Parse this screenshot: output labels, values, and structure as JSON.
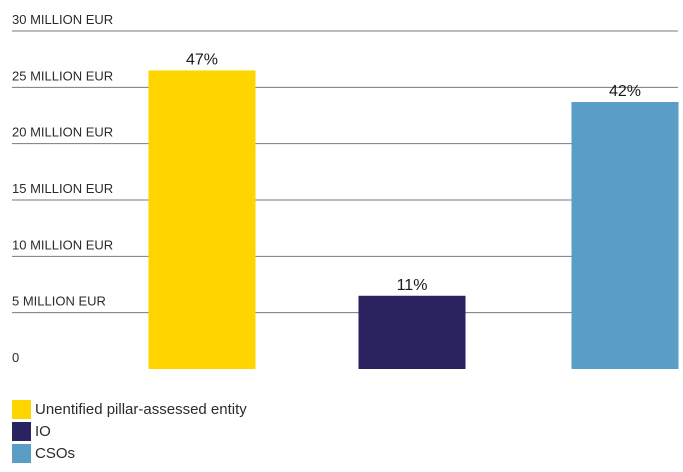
{
  "chart_data": {
    "type": "bar",
    "categories": [
      "Unentified pillar-assessed entity",
      "IO",
      "CSOs"
    ],
    "values": [
      26.5,
      6.5,
      23.7
    ],
    "data_labels": [
      "47%",
      "11%",
      "42%"
    ],
    "colors": [
      "#FFD500",
      "#2A2360",
      "#5A9EC8"
    ],
    "ylim": [
      0,
      30
    ],
    "y_ticks": [
      0,
      5,
      10,
      15,
      20,
      25,
      30
    ],
    "y_tick_labels": [
      "0",
      "5 MILLION EUR",
      "10 MILLION EUR",
      "15 MILLION EUR",
      "20 MILLION EUR",
      "25 MILLION EUR",
      "30 MILLION EUR"
    ],
    "grid": true,
    "legend_position": "bottom-left"
  },
  "legend": {
    "items": [
      {
        "label": "Unentified pillar-assessed entity",
        "color": "#FFD500"
      },
      {
        "label": "IO",
        "color": "#2A2360"
      },
      {
        "label": "CSOs",
        "color": "#5A9EC8"
      }
    ]
  }
}
